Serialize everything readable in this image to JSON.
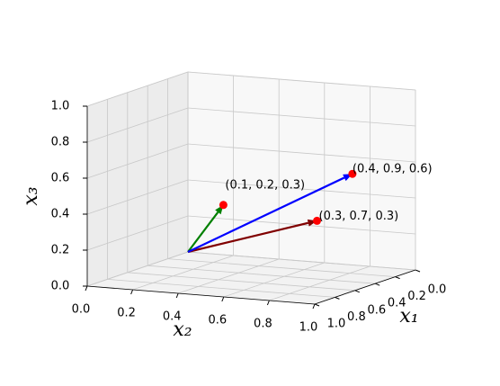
{
  "chart_data": {
    "type": "vector3d",
    "xlabel": "x₁",
    "ylabel": "x₂",
    "zlabel": "x₃",
    "xlim": [
      0,
      1
    ],
    "ylim": [
      0,
      1
    ],
    "zlim": [
      0,
      1
    ],
    "xticks": [
      {
        "value": 0,
        "label": "0.0"
      },
      0.2,
      0.4,
      0.6,
      0.8,
      {
        "value": 1,
        "label": "1.0"
      }
    ],
    "yticks": [
      {
        "value": 0,
        "label": "0.0"
      },
      0.2,
      0.4,
      0.6,
      0.8,
      {
        "value": 1,
        "label": "1.0"
      }
    ],
    "zticks": [
      {
        "value": 0,
        "label": "0.0"
      },
      0.2,
      0.4,
      0.6,
      0.8,
      {
        "value": 1,
        "label": "1.0"
      }
    ],
    "grid": true,
    "marker_color": "red",
    "points": [
      {
        "x": 0.1,
        "y": 0.2,
        "z": 0.3,
        "color": "green",
        "label": "(0.1, 0.2, 0.3)"
      },
      {
        "x": 0.3,
        "y": 0.7,
        "z": 0.3,
        "color": "#800000",
        "label": "(0.3, 0.7, 0.3)"
      },
      {
        "x": 0.4,
        "y": 0.9,
        "z": 0.6,
        "color": "blue",
        "label": "(0.4, 0.9, 0.6)"
      }
    ]
  }
}
